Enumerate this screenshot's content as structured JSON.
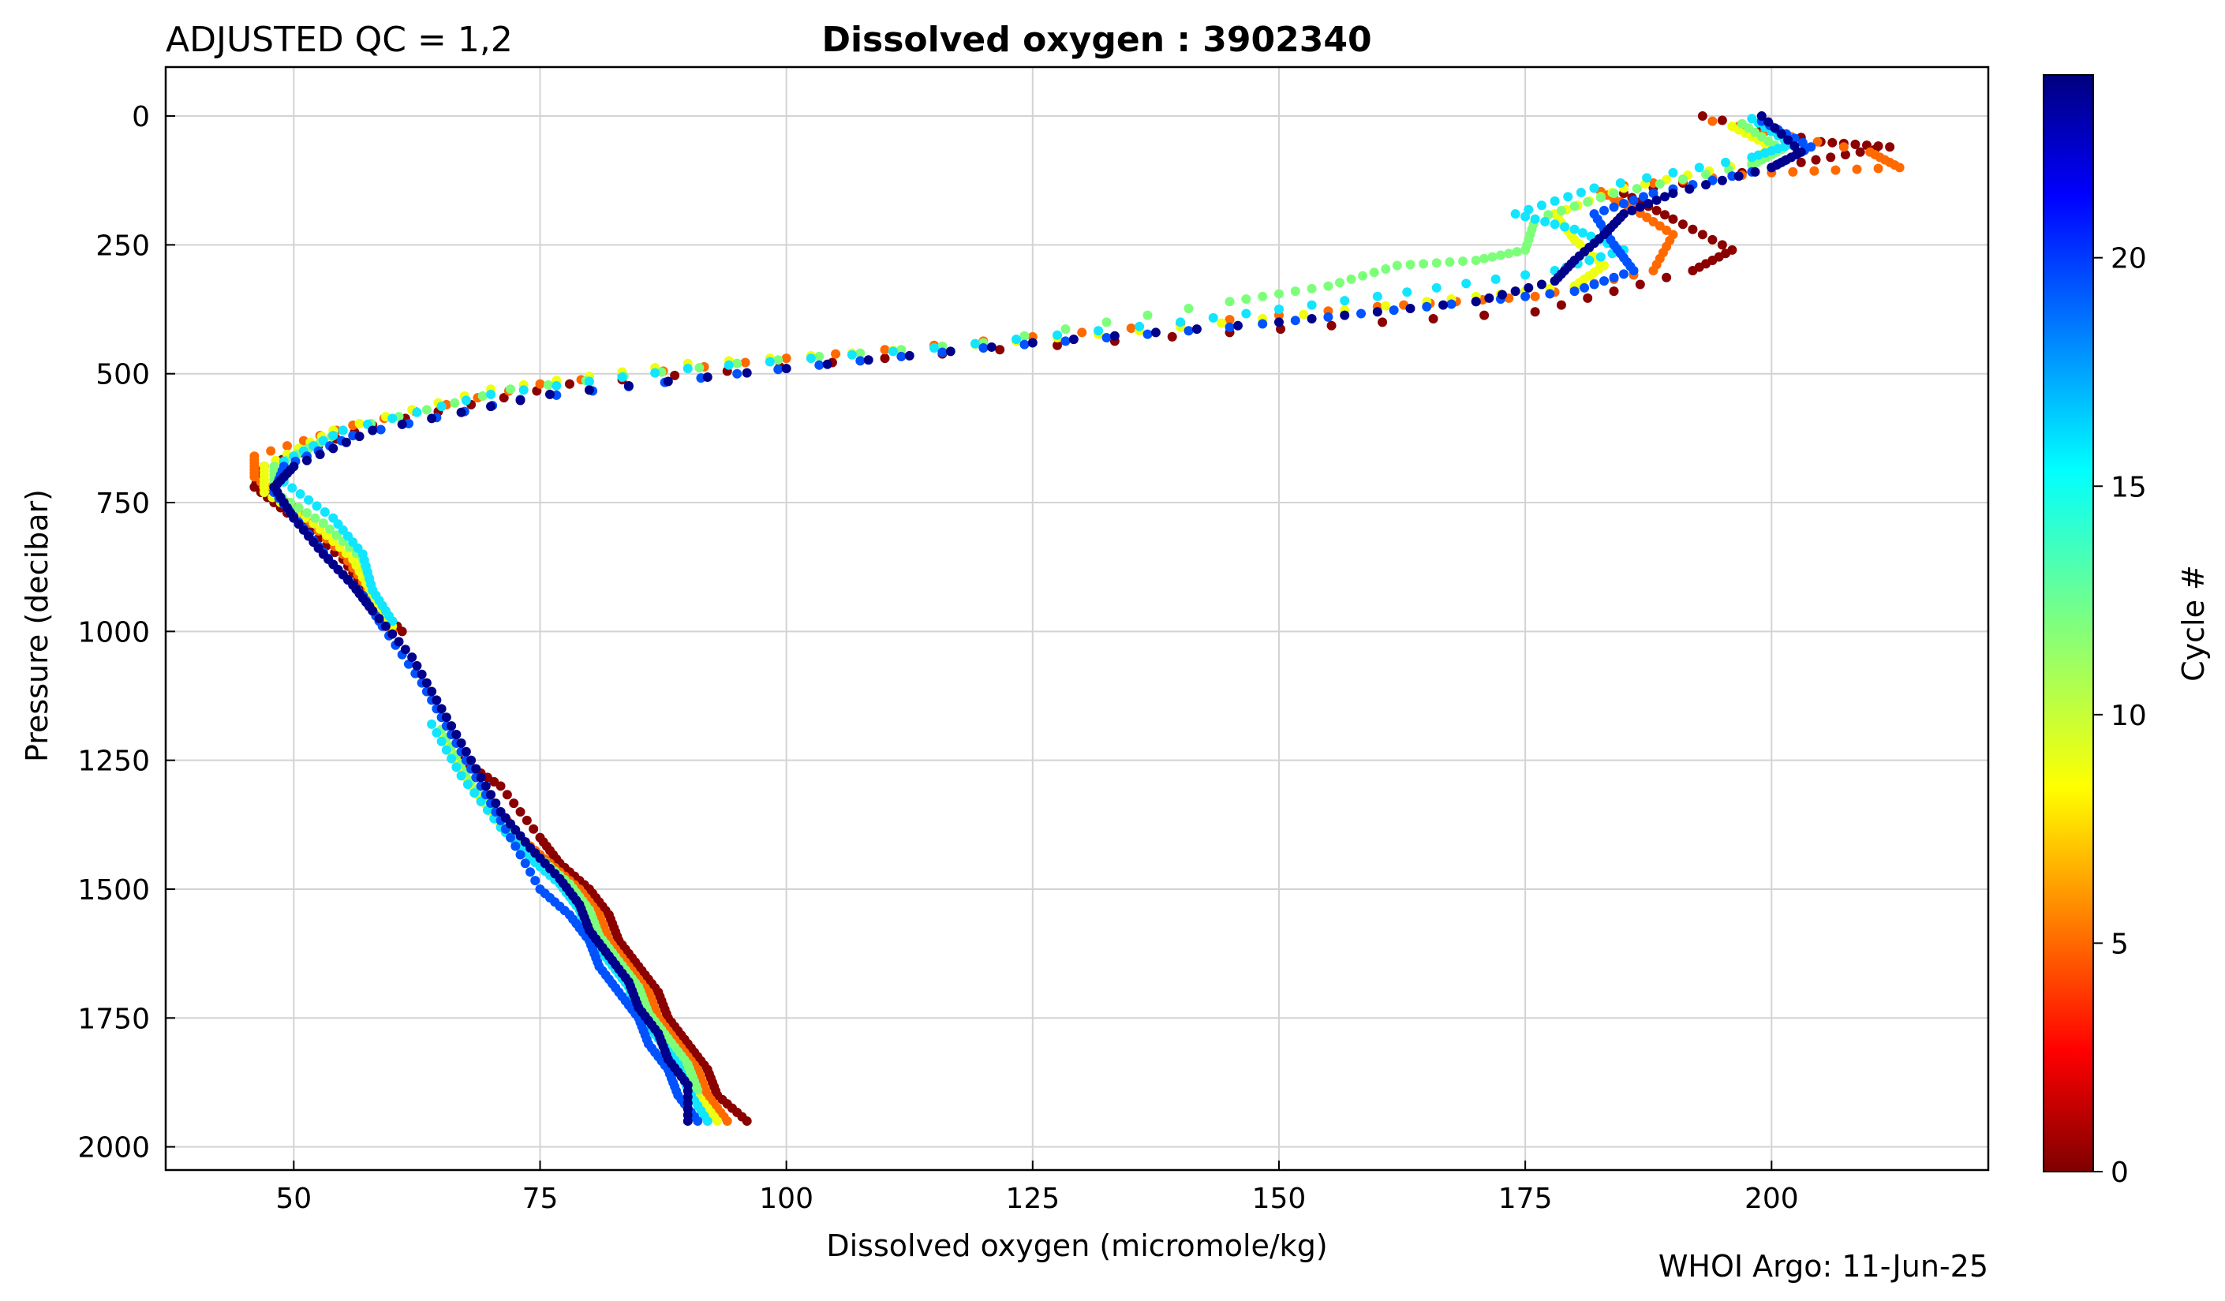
{
  "header": {
    "qc_label": "ADJUSTED QC = 1,2",
    "title": "Dissolved oxygen : 3902340",
    "footer": "WHOI Argo: 11-Jun-25"
  },
  "chart_data": {
    "type": "scatter",
    "title": "Dissolved oxygen : 3902340",
    "xlabel": "Dissolved oxygen  (micromole/kg)",
    "ylabel": "Pressure  (decibar)",
    "xlim": [
      37,
      222
    ],
    "ylim": [
      2045,
      -95
    ],
    "y_inverted": true,
    "grid": true,
    "xticks": [
      50,
      75,
      100,
      125,
      150,
      175,
      200
    ],
    "yticks": [
      0,
      250,
      500,
      750,
      1000,
      1250,
      1500,
      1750,
      2000
    ],
    "colorbar": {
      "label": "Cycle #",
      "range": [
        0,
        24
      ],
      "ticks": [
        0,
        5,
        10,
        15,
        20
      ],
      "colormap": "jet"
    },
    "series": [
      {
        "cycle": 1,
        "color": "#8b0000",
        "points": [
          [
            193,
            0
          ],
          [
            205,
            50
          ],
          [
            212,
            60
          ],
          [
            203,
            90
          ],
          [
            185,
            150
          ],
          [
            190,
            200
          ],
          [
            196,
            260
          ],
          [
            192,
            300
          ],
          [
            176,
            380
          ],
          [
            145,
            420
          ],
          [
            110,
            470
          ],
          [
            78,
            520
          ],
          [
            58,
            600
          ],
          [
            47,
            680
          ],
          [
            46,
            720
          ],
          [
            50,
            780
          ],
          [
            55,
            860
          ],
          [
            58,
            940
          ],
          [
            61,
            1000
          ],
          [
            67,
            1250
          ],
          [
            71,
            1300
          ],
          [
            75,
            1400
          ],
          [
            77,
            1450
          ],
          [
            80,
            1500
          ],
          [
            82,
            1550
          ],
          [
            83,
            1600
          ],
          [
            85,
            1650
          ],
          [
            87,
            1700
          ],
          [
            88,
            1750
          ],
          [
            90,
            1800
          ],
          [
            92,
            1850
          ],
          [
            93,
            1900
          ],
          [
            96,
            1950
          ]
        ]
      },
      {
        "cycle": 5,
        "color": "#ff6a00",
        "points": [
          [
            194,
            10
          ],
          [
            210,
            70
          ],
          [
            213,
            100
          ],
          [
            200,
            110
          ],
          [
            182,
            140
          ],
          [
            186,
            180
          ],
          [
            190,
            230
          ],
          [
            188,
            300
          ],
          [
            176,
            350
          ],
          [
            160,
            370
          ],
          [
            130,
            420
          ],
          [
            100,
            470
          ],
          [
            75,
            520
          ],
          [
            56,
            600
          ],
          [
            46,
            660
          ],
          [
            46,
            700
          ],
          [
            50,
            760
          ],
          [
            55,
            850
          ],
          [
            58,
            930
          ],
          [
            60,
            1000
          ],
          [
            66,
            1200
          ],
          [
            69,
            1300
          ],
          [
            73,
            1400
          ],
          [
            76,
            1450
          ],
          [
            79,
            1500
          ],
          [
            81,
            1550
          ],
          [
            82,
            1600
          ],
          [
            84,
            1650
          ],
          [
            86,
            1700
          ],
          [
            87,
            1750
          ],
          [
            89,
            1800
          ],
          [
            91,
            1850
          ],
          [
            92,
            1900
          ],
          [
            94,
            1950
          ]
        ]
      },
      {
        "cycle": 10,
        "color": "#eeff11",
        "points": [
          [
            196,
            20
          ],
          [
            200,
            60
          ],
          [
            198,
            90
          ],
          [
            185,
            140
          ],
          [
            178,
            190
          ],
          [
            180,
            240
          ],
          [
            183,
            290
          ],
          [
            180,
            330
          ],
          [
            165,
            360
          ],
          [
            140,
            410
          ],
          [
            115,
            450
          ],
          [
            90,
            480
          ],
          [
            70,
            530
          ],
          [
            54,
            610
          ],
          [
            47,
            680
          ],
          [
            47,
            730
          ],
          [
            52,
            790
          ],
          [
            56,
            860
          ],
          [
            58,
            930
          ],
          [
            60,
            990
          ],
          [
            65,
            1200
          ],
          [
            68,
            1300
          ],
          [
            72,
            1400
          ],
          [
            75,
            1450
          ],
          [
            78,
            1500
          ],
          [
            80,
            1550
          ],
          [
            81,
            1600
          ],
          [
            83,
            1650
          ],
          [
            85,
            1700
          ],
          [
            86,
            1750
          ],
          [
            88,
            1800
          ],
          [
            90,
            1850
          ],
          [
            91,
            1900
          ],
          [
            93,
            1950
          ]
        ]
      },
      {
        "cycle": 13,
        "color": "#7dff7a",
        "points": [
          [
            197,
            15
          ],
          [
            201,
            65
          ],
          [
            198,
            95
          ],
          [
            184,
            150
          ],
          [
            176,
            200
          ],
          [
            175,
            260
          ],
          [
            170,
            280
          ],
          [
            162,
            290
          ],
          [
            155,
            330
          ],
          [
            145,
            360
          ],
          [
            120,
            440
          ],
          [
            95,
            480
          ],
          [
            72,
            530
          ],
          [
            55,
            610
          ],
          [
            48,
            680
          ],
          [
            48,
            730
          ],
          [
            53,
            790
          ],
          [
            57,
            860
          ],
          [
            58,
            920
          ],
          [
            60,
            980
          ],
          [
            65,
            1190
          ],
          [
            68,
            1290
          ],
          [
            72,
            1390
          ],
          [
            75,
            1440
          ],
          [
            78,
            1490
          ],
          [
            80,
            1540
          ],
          [
            81,
            1590
          ],
          [
            83,
            1640
          ],
          [
            85,
            1690
          ],
          [
            86,
            1740
          ],
          [
            88,
            1790
          ],
          [
            90,
            1840
          ],
          [
            91,
            1890
          ]
        ]
      },
      {
        "cycle": 16,
        "color": "#11e5ff",
        "points": [
          [
            198,
            5
          ],
          [
            202,
            55
          ],
          [
            198,
            80
          ],
          [
            182,
            140
          ],
          [
            174,
            190
          ],
          [
            180,
            220
          ],
          [
            185,
            260
          ],
          [
            178,
            300
          ],
          [
            160,
            350
          ],
          [
            140,
            400
          ],
          [
            115,
            450
          ],
          [
            90,
            490
          ],
          [
            70,
            540
          ],
          [
            55,
            610
          ],
          [
            49,
            670
          ],
          [
            49,
            710
          ],
          [
            54,
            780
          ],
          [
            57,
            850
          ],
          [
            58,
            920
          ],
          [
            60,
            980
          ],
          [
            64,
            1180
          ],
          [
            67,
            1280
          ],
          [
            71,
            1380
          ],
          [
            74,
            1440
          ],
          [
            77,
            1490
          ],
          [
            79,
            1540
          ],
          [
            80,
            1590
          ],
          [
            82,
            1640
          ],
          [
            84,
            1690
          ],
          [
            85,
            1740
          ],
          [
            87,
            1790
          ],
          [
            89,
            1840
          ],
          [
            90,
            1890
          ],
          [
            92,
            1950
          ]
        ]
      },
      {
        "cycle": 20,
        "color": "#0052ff",
        "points": [
          [
            199,
            10
          ],
          [
            204,
            60
          ],
          [
            200,
            100
          ],
          [
            188,
            150
          ],
          [
            182,
            190
          ],
          [
            184,
            250
          ],
          [
            186,
            300
          ],
          [
            180,
            340
          ],
          [
            165,
            370
          ],
          [
            145,
            410
          ],
          [
            120,
            450
          ],
          [
            95,
            500
          ],
          [
            73,
            550
          ],
          [
            56,
            620
          ],
          [
            49,
            680
          ],
          [
            48,
            730
          ],
          [
            51,
            800
          ],
          [
            54,
            870
          ],
          [
            57,
            930
          ],
          [
            59,
            990
          ],
          [
            63,
            1100
          ],
          [
            66,
            1200
          ],
          [
            69,
            1300
          ],
          [
            72,
            1400
          ],
          [
            75,
            1500
          ],
          [
            78,
            1550
          ],
          [
            80,
            1600
          ],
          [
            81,
            1650
          ],
          [
            83,
            1700
          ],
          [
            85,
            1750
          ],
          [
            86,
            1800
          ],
          [
            88,
            1850
          ],
          [
            89,
            1900
          ],
          [
            91,
            1950
          ]
        ]
      },
      {
        "cycle": 24,
        "color": "#00008b",
        "points": [
          [
            199,
            0
          ],
          [
            203,
            70
          ],
          [
            200,
            100
          ],
          [
            190,
            150
          ],
          [
            185,
            190
          ],
          [
            183,
            230
          ],
          [
            180,
            280
          ],
          [
            178,
            320
          ],
          [
            170,
            360
          ],
          [
            150,
            400
          ],
          [
            125,
            440
          ],
          [
            100,
            490
          ],
          [
            76,
            540
          ],
          [
            58,
            610
          ],
          [
            50,
            680
          ],
          [
            48,
            720
          ],
          [
            50,
            780
          ],
          [
            53,
            850
          ],
          [
            56,
            910
          ],
          [
            58,
            960
          ],
          [
            62,
            1050
          ],
          [
            65,
            1150
          ],
          [
            68,
            1250
          ],
          [
            71,
            1350
          ],
          [
            74,
            1420
          ],
          [
            77,
            1480
          ],
          [
            79,
            1530
          ],
          [
            80,
            1580
          ],
          [
            82,
            1630
          ],
          [
            84,
            1680
          ],
          [
            85,
            1730
          ],
          [
            87,
            1780
          ],
          [
            88,
            1830
          ],
          [
            90,
            1880
          ],
          [
            90,
            1950
          ]
        ]
      }
    ]
  }
}
